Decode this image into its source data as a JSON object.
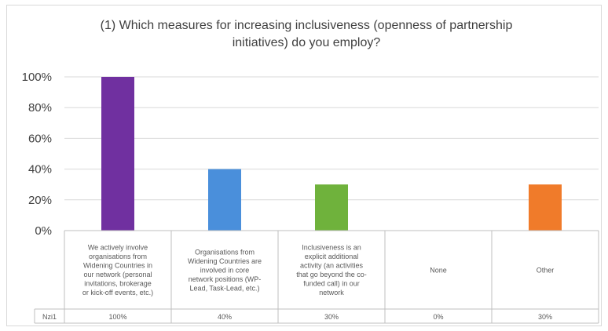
{
  "chart_data": {
    "type": "bar",
    "title": "(1) Which measures for increasing inclusiveness (openness of partnership initiatives) do you employ?",
    "title_lines": [
      "(1) Which measures for increasing inclusiveness (openness of partnership",
      "initiatives) do you employ?"
    ],
    "categories": [
      [
        "We actively involve",
        "organisations from",
        "Widening Countries in",
        "our network (personal",
        "invitations, brokerage",
        "or kick-off events, etc.)"
      ],
      [
        "Organisations from",
        "Widening Countries are",
        "involved in core",
        "network positions (WP-",
        "Lead, Task-Lead, etc.)"
      ],
      [
        "Inclusiveness is an",
        "explicit additional",
        "activity (an activities",
        "that go beyond the co-",
        "funded call) in our",
        "network"
      ],
      [
        "None"
      ],
      [
        "Other"
      ]
    ],
    "series": [
      {
        "name": "Nzi1",
        "values": [
          100,
          40,
          30,
          0,
          30
        ],
        "value_labels": [
          "100%",
          "40%",
          "30%",
          "0%",
          "30%"
        ]
      }
    ],
    "colors": [
      "#7030a0",
      "#4a8fdb",
      "#6fb23c",
      "#5b9bd5",
      "#f07b2a"
    ],
    "yticks": [
      "0%",
      "20%",
      "40%",
      "60%",
      "80%",
      "100%"
    ],
    "ylim": [
      0,
      100
    ],
    "grid": true,
    "legend": "none",
    "data_table": true
  }
}
